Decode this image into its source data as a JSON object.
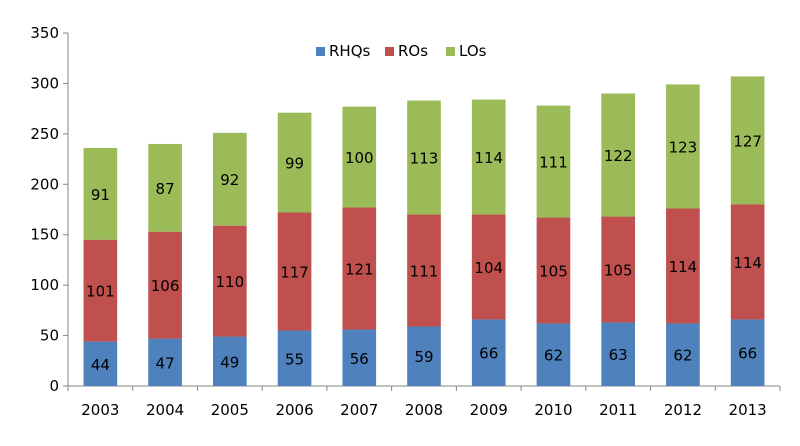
{
  "chart_data": {
    "type": "bar",
    "stacked": true,
    "categories": [
      "2003",
      "2004",
      "2005",
      "2006",
      "2007",
      "2008",
      "2009",
      "2010",
      "2011",
      "2012",
      "2013"
    ],
    "series": [
      {
        "name": "RHQs",
        "color": "#4f81bd",
        "values": [
          44,
          47,
          49,
          55,
          56,
          59,
          66,
          62,
          63,
          62,
          66
        ]
      },
      {
        "name": "ROs",
        "color": "#c0504d",
        "values": [
          101,
          106,
          110,
          117,
          121,
          111,
          104,
          105,
          105,
          114,
          114
        ]
      },
      {
        "name": "LOs",
        "color": "#9bbb59",
        "values": [
          91,
          87,
          92,
          99,
          100,
          113,
          114,
          111,
          122,
          123,
          127
        ]
      }
    ],
    "ylim": [
      0,
      350
    ],
    "yticks": [
      0,
      50,
      100,
      150,
      200,
      250,
      300,
      350
    ],
    "grid": false,
    "legend_position": "top-center",
    "data_labels": true
  }
}
